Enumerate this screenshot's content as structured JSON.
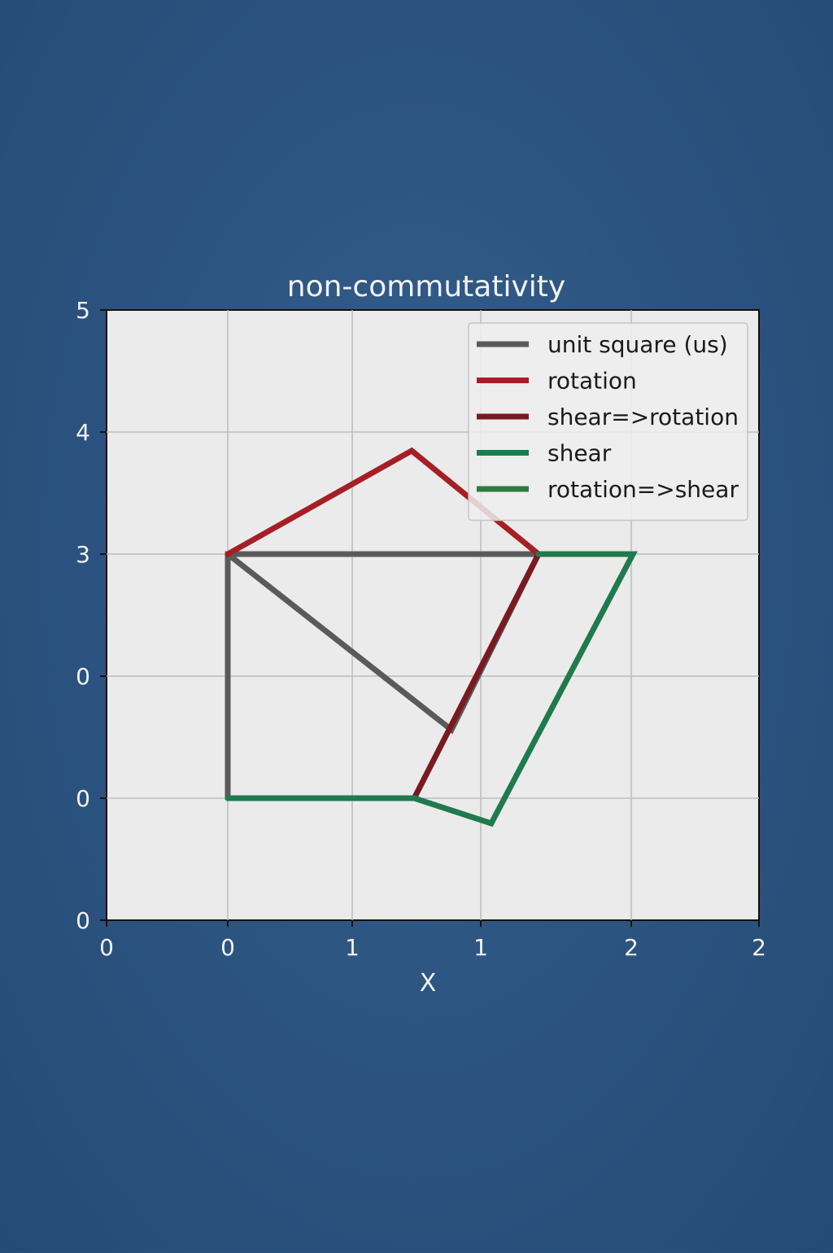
{
  "chart_data": {
    "type": "line",
    "title": "non-commutativity",
    "xlabel": "X",
    "ylabel": "",
    "x_tick_labels": [
      "0",
      "0",
      "1",
      "1",
      "2",
      "2"
    ],
    "y_tick_labels": [
      "0",
      "0",
      "0",
      "3",
      "4",
      "5"
    ],
    "grid": true,
    "legend_position": "top-right",
    "background_color": "#2f5684",
    "plot_background_color": "#ebebeb",
    "series": [
      {
        "name": "unit square (us)",
        "color": "#5a5a5a",
        "x": [
          0,
          0,
          1.25,
          0.9,
          0
        ],
        "y": [
          0,
          3,
          3,
          0.84,
          3
        ]
      },
      {
        "name": "rotation",
        "color": "#a51f25",
        "x": [
          0,
          0.74,
          1.25
        ],
        "y": [
          3,
          4.27,
          3
        ]
      },
      {
        "name": "shear=>rotation",
        "color": "#7a1a20",
        "x": [
          1.25,
          0.75
        ],
        "y": [
          3,
          0
        ]
      },
      {
        "name": "shear",
        "color": "#1f7a4d",
        "x": [
          1.25,
          1.63,
          1.06,
          0.75,
          0
        ],
        "y": [
          3,
          3,
          -0.31,
          0,
          0
        ]
      },
      {
        "name": "rotation=>shear",
        "color": "#2e7a3f",
        "x": [],
        "y": []
      }
    ]
  }
}
